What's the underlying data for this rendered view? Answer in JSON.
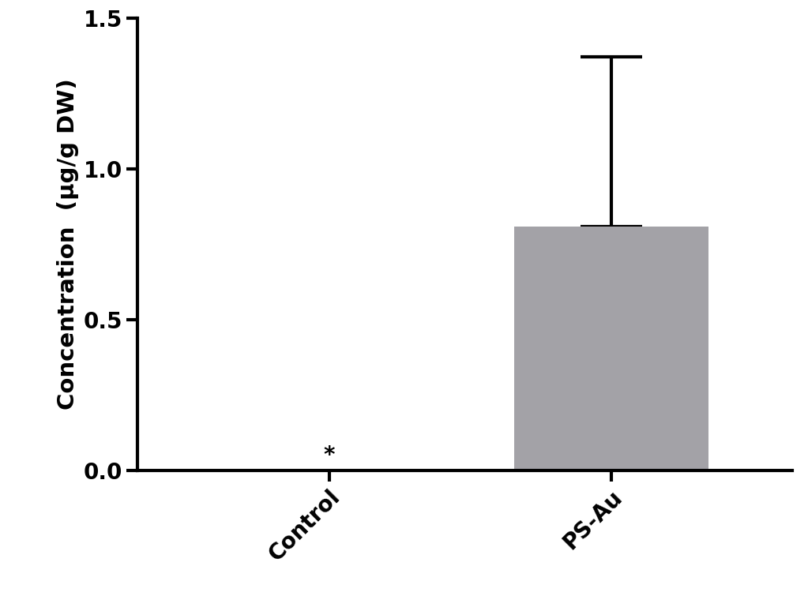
{
  "chart_data": {
    "type": "bar",
    "categories": [
      "Control",
      "PS-Au"
    ],
    "values": [
      0,
      0.81
    ],
    "errors": [
      null,
      0.56
    ],
    "color": "#a3a2a7",
    "y_label": "Concentration  (μg/g DW)",
    "ylim": [
      0,
      1.5
    ],
    "yticks": [
      0.0,
      0.5,
      1.0,
      1.5
    ],
    "annotations": [
      {
        "category": "Control",
        "text": "*"
      }
    ],
    "grid": false
  }
}
